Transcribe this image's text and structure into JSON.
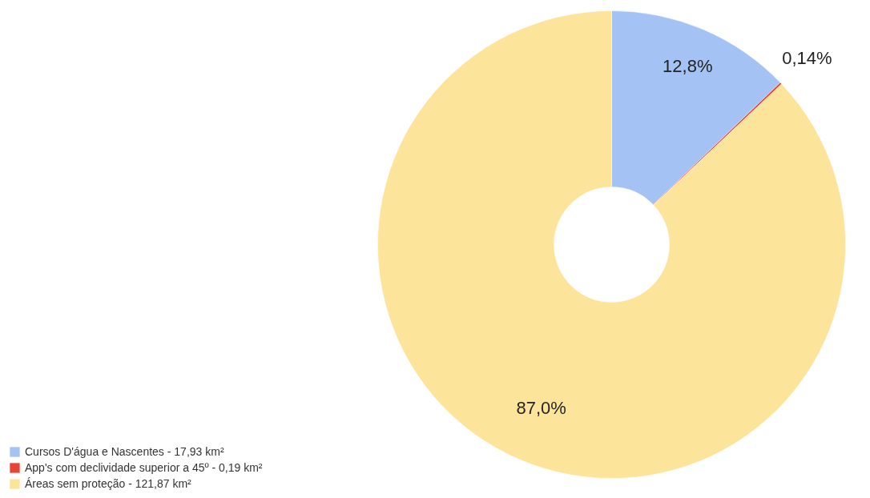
{
  "chart_data": {
    "type": "donut",
    "categories": [
      "Cursos D'água e Nascentes - 17,93 km²",
      "App's com declividade superior a 45º - 0,19 km²",
      "Áreas sem proteção - 121,87 km²"
    ],
    "values": [
      12.8,
      0.14,
      87.0
    ],
    "value_labels": [
      "12,8%",
      "0,14%",
      "87,0%"
    ],
    "colors": [
      "#a4c2f4",
      "#e84335",
      "#fde49b"
    ],
    "legend": "bottom left"
  }
}
